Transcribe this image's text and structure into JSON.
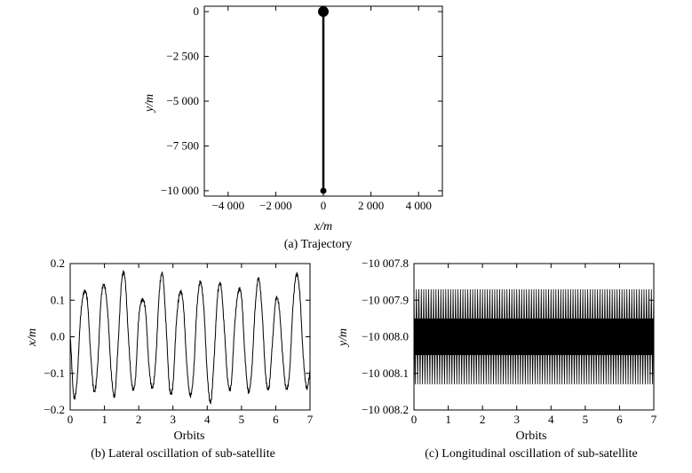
{
  "chart_data": [
    {
      "id": "a",
      "type": "line",
      "caption": "(a) Trajectory",
      "xlabel": "x/m",
      "ylabel": "y/m",
      "xlim": [
        -5000,
        5000
      ],
      "ylim": [
        -10300,
        300
      ],
      "xticks": [
        -4000,
        -2000,
        0,
        2000,
        4000
      ],
      "xtick_labels": [
        "−4 000",
        "−2 000",
        "0",
        "2 000",
        "4 000"
      ],
      "yticks": [
        0,
        -2500,
        -5000,
        -7500,
        -10000
      ],
      "ytick_labels": [
        "0",
        "−2 500",
        "−5 000",
        "−7 500",
        "−10 000"
      ],
      "series": [
        {
          "x": [
            0,
            0
          ],
          "y": [
            0,
            -10000
          ]
        }
      ],
      "markers": [
        {
          "x": 0,
          "y": 0,
          "size": "large"
        },
        {
          "x": 0,
          "y": -10000,
          "size": "small"
        }
      ],
      "grid": false
    },
    {
      "id": "b",
      "type": "line",
      "caption": "(b) Lateral oscillation of sub-satellite",
      "xlabel": "Orbits",
      "ylabel": "x/m",
      "xlim": [
        0,
        7
      ],
      "ylim": [
        -0.2,
        0.2
      ],
      "xticks": [
        0,
        1,
        2,
        3,
        4,
        5,
        6,
        7
      ],
      "xtick_labels": [
        "0",
        "1",
        "2",
        "3",
        "4",
        "5",
        "6",
        "7"
      ],
      "yticks": [
        0.2,
        0.1,
        0.0,
        -0.1,
        -0.2
      ],
      "ytick_labels": [
        "0.2",
        "0.1",
        "0.0",
        "−0.1",
        "−0.2"
      ],
      "series": [
        {
          "x": [
            0,
            0.1,
            0.2,
            0.3,
            0.4,
            0.5,
            0.6,
            0.7,
            0.8,
            0.9,
            1.0,
            1.1,
            1.2,
            1.3,
            1.4,
            1.5,
            1.6,
            1.7,
            1.8,
            1.9,
            2.0,
            2.1,
            2.2,
            2.3,
            2.4,
            2.5,
            2.6,
            2.7,
            2.8,
            2.9,
            3.0,
            3.1,
            3.2,
            3.3,
            3.4,
            3.5,
            3.6,
            3.7,
            3.8,
            3.9,
            4.0,
            4.1,
            4.2,
            4.3,
            4.4,
            4.5,
            4.6,
            4.7,
            4.8,
            4.9,
            5.0,
            5.1,
            5.2,
            5.3,
            5.4,
            5.5,
            5.6,
            5.7,
            5.8,
            5.9,
            6.0,
            6.1,
            6.2,
            6.3,
            6.4,
            6.5,
            6.6,
            6.7,
            6.8,
            6.9,
            7.0
          ],
          "y": [
            0.0,
            -0.16,
            -0.12,
            0.05,
            0.12,
            0.1,
            -0.05,
            -0.15,
            -0.08,
            0.1,
            0.14,
            0.06,
            -0.1,
            -0.16,
            -0.02,
            0.15,
            0.16,
            0.0,
            -0.13,
            -0.12,
            0.05,
            0.1,
            0.07,
            -0.08,
            -0.14,
            -0.06,
            0.12,
            0.17,
            0.03,
            -0.14,
            -0.13,
            0.04,
            0.12,
            0.09,
            -0.07,
            -0.16,
            -0.1,
            0.08,
            0.15,
            0.08,
            -0.1,
            -0.18,
            -0.06,
            0.11,
            0.14,
            0.02,
            -0.12,
            -0.13,
            0.03,
            0.12,
            0.11,
            -0.05,
            -0.15,
            -0.09,
            0.08,
            0.16,
            0.07,
            -0.1,
            -0.14,
            -0.02,
            0.1,
            0.08,
            -0.05,
            -0.14,
            -0.1,
            0.08,
            0.17,
            0.12,
            -0.05,
            -0.14,
            -0.1
          ]
        }
      ],
      "grid": false
    },
    {
      "id": "c",
      "type": "line",
      "caption": "(c) Longitudinal oscillation of sub-satellite",
      "xlabel": "Orbits",
      "ylabel": "y/m",
      "xlim": [
        0,
        7
      ],
      "ylim": [
        -10008.2,
        -10007.8
      ],
      "xticks": [
        0,
        1,
        2,
        3,
        4,
        5,
        6,
        7
      ],
      "xtick_labels": [
        "0",
        "1",
        "2",
        "3",
        "4",
        "5",
        "6",
        "7"
      ],
      "yticks": [
        -10007.8,
        -10007.9,
        -10008.0,
        -10008.1,
        -10008.2
      ],
      "ytick_labels": [
        "−10 007.8",
        "−10 007.9",
        "−10 008.0",
        "−10 008.1",
        "−10 008.2"
      ],
      "series": [
        {
          "description_values": "dense high-frequency oscillation about −10 008.0 m",
          "center": -10008.0,
          "upper_envelope": -10007.87,
          "lower_envelope": -10008.13,
          "inner_band": [
            -10007.95,
            -10008.05
          ],
          "cycles_per_orbit": 14
        }
      ],
      "grid": false
    }
  ]
}
